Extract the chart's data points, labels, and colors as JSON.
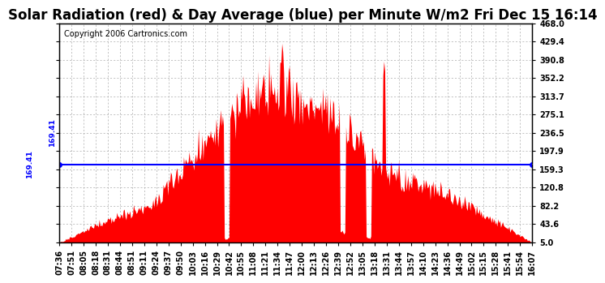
{
  "title": "Solar Radiation (red) & Day Average (blue) per Minute W/m2 Fri Dec 15 16:14",
  "copyright": "Copyright 2006 Cartronics.com",
  "avg_line": 169.41,
  "avg_label": "169.41",
  "yticks": [
    5.0,
    43.6,
    82.2,
    120.8,
    159.3,
    197.9,
    236.5,
    275.1,
    313.7,
    352.2,
    390.8,
    429.4,
    468.0
  ],
  "ymin": 5.0,
  "ymax": 468.0,
  "bar_color": "#FF0000",
  "line_color": "#0000FF",
  "bg_color": "#FFFFFF",
  "grid_color": "#AAAAAA",
  "xtick_labels": [
    "07:36",
    "07:51",
    "08:05",
    "08:18",
    "08:31",
    "08:44",
    "08:51",
    "09:11",
    "09:24",
    "09:37",
    "09:50",
    "10:03",
    "10:16",
    "10:29",
    "10:42",
    "10:55",
    "11:08",
    "11:21",
    "11:34",
    "11:47",
    "12:00",
    "12:13",
    "12:26",
    "12:39",
    "12:52",
    "13:05",
    "13:18",
    "13:31",
    "13:44",
    "13:57",
    "14:10",
    "14:23",
    "14:36",
    "14:49",
    "15:02",
    "15:15",
    "15:28",
    "15:41",
    "15:54",
    "16:07"
  ],
  "title_fontsize": 12,
  "tick_fontsize": 7,
  "copyright_fontsize": 7,
  "n_points": 511,
  "seed": 42
}
